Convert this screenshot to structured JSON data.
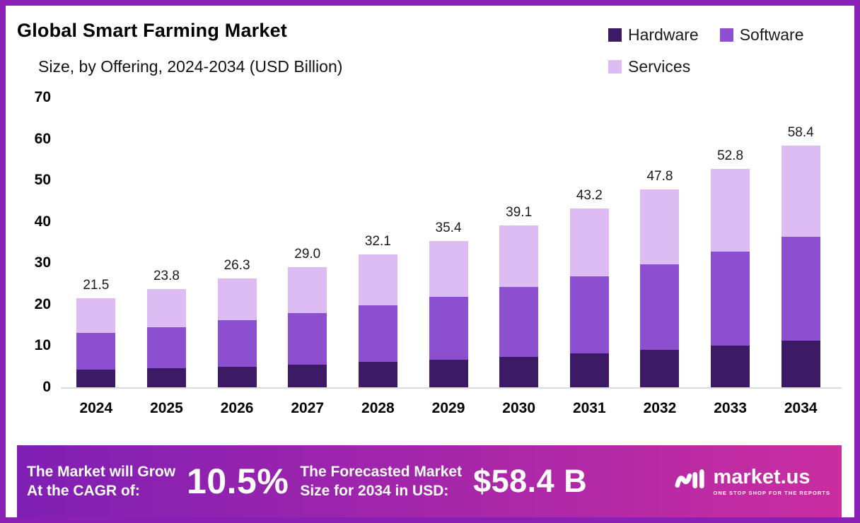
{
  "frame": {
    "border_color": "#8a1fb5",
    "background": "#ffffff"
  },
  "header": {
    "title": "Global Smart Farming Market",
    "subtitle": "Size, by Offering, 2024-2034 (USD Billion)"
  },
  "legend": [
    {
      "label": "Hardware",
      "color": "#3d1a66"
    },
    {
      "label": "Software",
      "color": "#8c4fd0"
    },
    {
      "label": "Services",
      "color": "#dcbcf2"
    }
  ],
  "chart_data": {
    "type": "bar",
    "stacked": true,
    "title": "Global Smart Farming Market Size, by Offering, 2024-2034 (USD Billion)",
    "categories": [
      "2024",
      "2025",
      "2026",
      "2027",
      "2028",
      "2029",
      "2030",
      "2031",
      "2032",
      "2033",
      "2034"
    ],
    "series": [
      {
        "name": "Hardware",
        "color": "#3d1a66",
        "values": [
          4.3,
          4.6,
          5.0,
          5.5,
          6.1,
          6.7,
          7.4,
          8.2,
          9.1,
          10.1,
          11.2
        ]
      },
      {
        "name": "Software",
        "color": "#8c4fd0",
        "values": [
          8.9,
          10.0,
          11.2,
          12.5,
          13.7,
          15.2,
          16.8,
          18.6,
          20.6,
          22.7,
          25.1
        ]
      },
      {
        "name": "Services",
        "color": "#dcbcf2",
        "values": [
          8.3,
          9.2,
          10.1,
          11.0,
          12.3,
          13.5,
          14.9,
          16.4,
          18.1,
          20.0,
          22.1
        ]
      }
    ],
    "totals": [
      "21.5",
      "23.8",
      "26.3",
      "29.0",
      "32.1",
      "35.4",
      "39.1",
      "43.2",
      "47.8",
      "52.8",
      "58.4"
    ],
    "xlabel": "",
    "ylabel": "",
    "ylim": [
      0,
      70
    ],
    "yticks": [
      0,
      10,
      20,
      30,
      40,
      50,
      60,
      70
    ],
    "grid": false,
    "legend_position": "top-right"
  },
  "banner": {
    "left_line1": "The Market will Grow",
    "left_line2": "At the CAGR of:",
    "cagr": "10.5%",
    "mid_line1": "The Forecasted Market",
    "mid_line2": "Size for 2034 in USD:",
    "value": "$58.4 B",
    "brand": "market.us",
    "tagline": "ONE STOP SHOP FOR THE REPORTS",
    "gradient_left": "#7f1fb4",
    "gradient_right": "#c92da0"
  }
}
